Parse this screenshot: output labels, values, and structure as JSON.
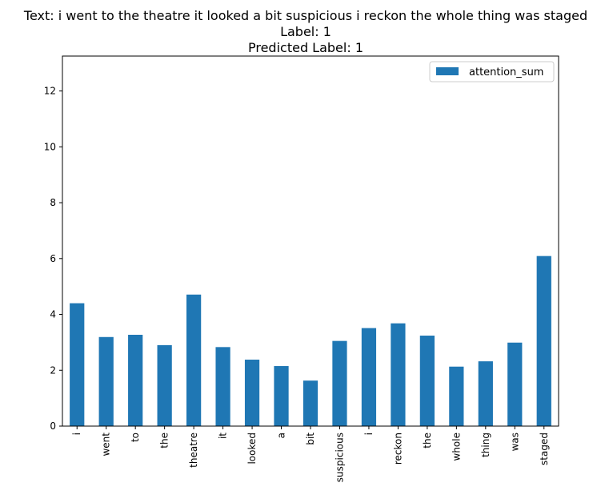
{
  "chart_data": {
    "type": "bar",
    "title_lines": [
      "Text: i went to the theatre it looked a bit suspicious i reckon the whole thing was staged",
      "Label: 1",
      "Predicted Label: 1"
    ],
    "xlabel": "",
    "ylabel": "",
    "categories": [
      "i",
      "went",
      "to",
      "the",
      "theatre",
      "it",
      "looked",
      "a",
      "bit",
      "suspicious",
      "i",
      "reckon",
      "the",
      "whole",
      "thing",
      "was",
      "staged"
    ],
    "series": [
      {
        "name": "attention_sum",
        "values": [
          4.4,
          3.19,
          3.27,
          2.9,
          4.71,
          2.83,
          2.38,
          2.15,
          1.63,
          3.05,
          3.51,
          3.68,
          3.24,
          2.13,
          2.32,
          2.99,
          6.09
        ],
        "color": "#1f77b4"
      }
    ],
    "ylim": [
      0,
      13.25
    ],
    "yticks": [
      0,
      2,
      4,
      6,
      8,
      10,
      12
    ],
    "grid": false,
    "legend_position": "top-right"
  }
}
